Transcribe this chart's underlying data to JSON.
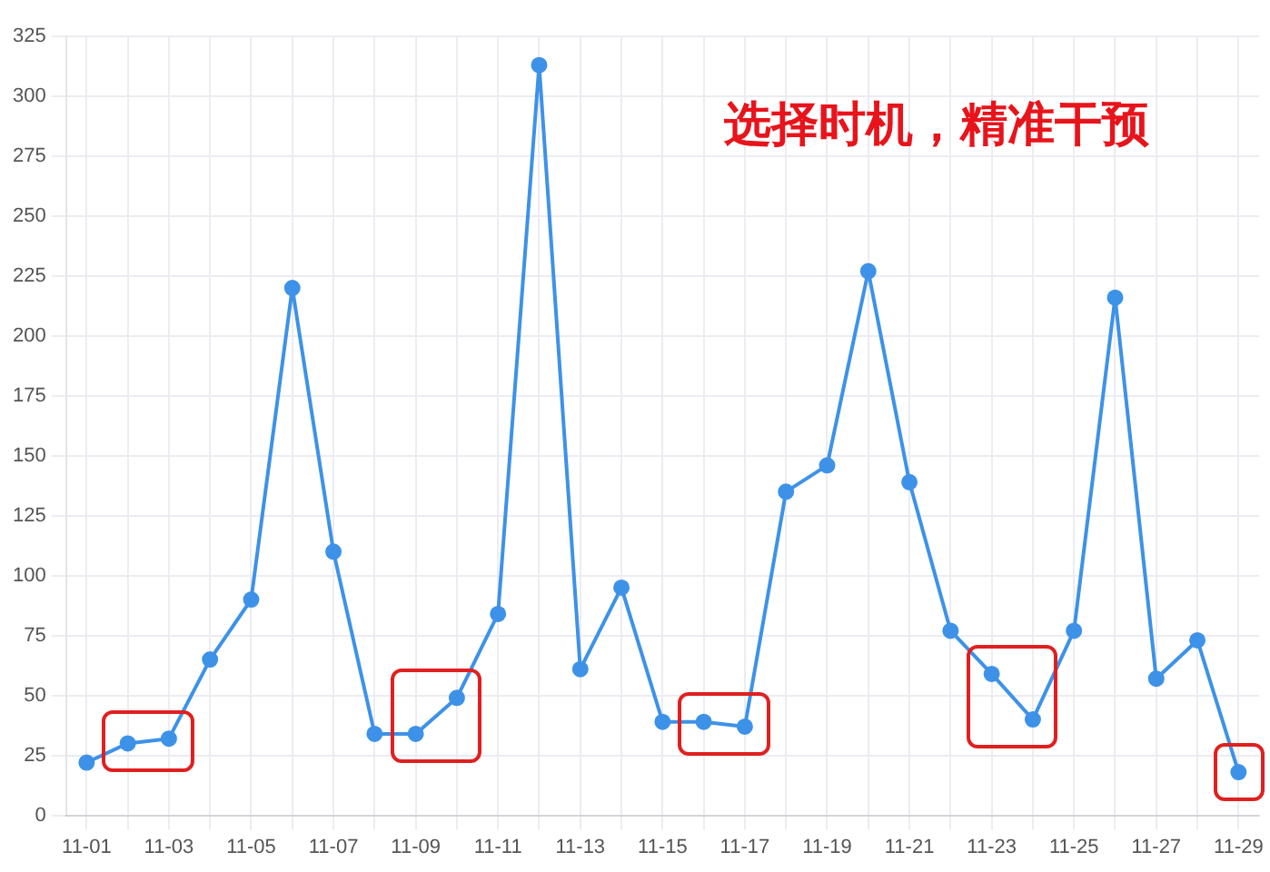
{
  "chart_data": {
    "type": "line",
    "annotations": [
      "选择时机，精准干预"
    ],
    "categories": [
      "11-01",
      null,
      "11-03",
      null,
      "11-05",
      null,
      "11-07",
      null,
      "11-09",
      null,
      "11-11",
      null,
      "11-13",
      null,
      "11-15",
      null,
      "11-17",
      null,
      "11-19",
      null,
      "11-21",
      null,
      "11-23",
      null,
      "11-25",
      null,
      "11-27",
      null,
      "11-29"
    ],
    "series": [
      {
        "color": "#3d92e8",
        "values": [
          22,
          30,
          32,
          65,
          90,
          220,
          110,
          34,
          34,
          49,
          84,
          313,
          61,
          95,
          39,
          39,
          37,
          135,
          146,
          227,
          139,
          77,
          59,
          40,
          77,
          216,
          57,
          73,
          18
        ]
      }
    ],
    "ylim": [
      0,
      325
    ],
    "yticks": [
      0,
      25,
      50,
      75,
      100,
      125,
      150,
      175,
      200,
      225,
      250,
      275,
      300,
      325
    ],
    "grid": true,
    "legend": false,
    "marker": "circle",
    "line_style": "solid"
  }
}
